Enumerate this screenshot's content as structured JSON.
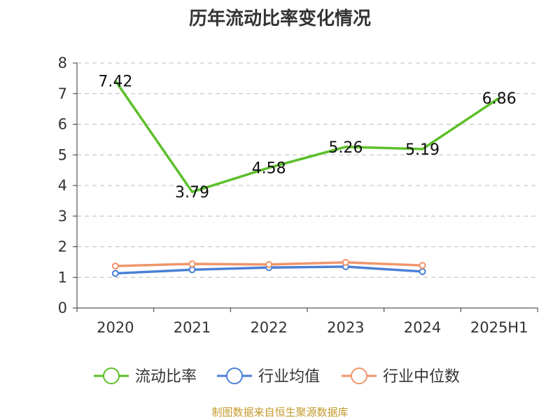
{
  "title": "历年流动比率变化情况",
  "source": "制图数据来自恒生聚源数据库",
  "colors": {
    "current_ratio": "#5cbf2a",
    "industry_avg": "#4a7fd6",
    "industry_median": "#f0956b",
    "grid": "#c8c8c8",
    "axis": "#333333"
  },
  "chart_data": {
    "type": "line",
    "title": "历年流动比率变化情况",
    "categories": [
      "2020",
      "2021",
      "2022",
      "2023",
      "2024",
      "2025H1"
    ],
    "ylim": [
      0,
      8
    ],
    "yticks": [
      0,
      1,
      2,
      3,
      4,
      5,
      6,
      7,
      8
    ],
    "grid": true,
    "legend_position": "bottom",
    "series": [
      {
        "name": "流动比率",
        "values": [
          7.42,
          3.79,
          4.58,
          5.26,
          5.19,
          6.86
        ],
        "labels": [
          "7.42",
          "3.79",
          "4.58",
          "5.26",
          "5.19",
          "6.86"
        ],
        "show_labels": true,
        "markers": false
      },
      {
        "name": "行业均值",
        "values": [
          1.13,
          1.25,
          1.32,
          1.35,
          1.19,
          null
        ],
        "show_labels": false,
        "markers": true
      },
      {
        "name": "行业中位数",
        "values": [
          1.37,
          1.44,
          1.42,
          1.49,
          1.39,
          null
        ],
        "show_labels": false,
        "markers": true
      }
    ]
  }
}
